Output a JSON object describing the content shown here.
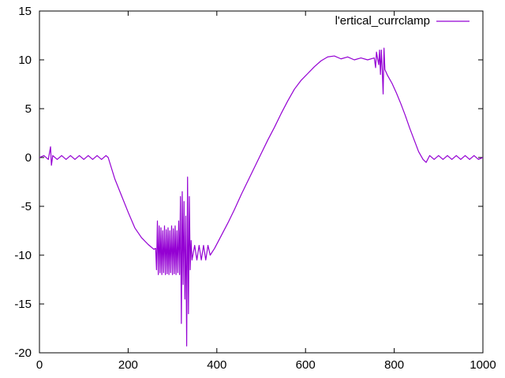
{
  "chart_data": {
    "type": "line",
    "title": "",
    "xlabel": "",
    "ylabel": "",
    "xlim": [
      0,
      1000
    ],
    "ylim": [
      -20,
      15
    ],
    "x_ticks": [
      0,
      200,
      400,
      600,
      800,
      1000
    ],
    "y_ticks": [
      -20,
      -15,
      -10,
      -5,
      0,
      5,
      10,
      15
    ],
    "grid": false,
    "legend_position": "top-right",
    "series": [
      {
        "name": "l'ertical_currclamp",
        "color": "#9400d3",
        "points": [
          [
            0,
            0.0
          ],
          [
            10,
            0.2
          ],
          [
            20,
            -0.2
          ],
          [
            25,
            1.1
          ],
          [
            27,
            -0.8
          ],
          [
            30,
            0.2
          ],
          [
            40,
            -0.2
          ],
          [
            50,
            0.2
          ],
          [
            60,
            -0.2
          ],
          [
            70,
            0.2
          ],
          [
            80,
            -0.2
          ],
          [
            90,
            0.2
          ],
          [
            100,
            -0.2
          ],
          [
            110,
            0.2
          ],
          [
            120,
            -0.2
          ],
          [
            130,
            0.2
          ],
          [
            140,
            -0.2
          ],
          [
            150,
            0.2
          ],
          [
            155,
            0.0
          ],
          [
            170,
            -2.2
          ],
          [
            185,
            -3.9
          ],
          [
            200,
            -5.6
          ],
          [
            215,
            -7.2
          ],
          [
            230,
            -8.2
          ],
          [
            245,
            -8.9
          ],
          [
            258,
            -9.4
          ],
          [
            262,
            -9.3
          ],
          [
            264,
            -11.5
          ],
          [
            266,
            -6.5
          ],
          [
            268,
            -12.0
          ],
          [
            270,
            -7.0
          ],
          [
            272,
            -11.8
          ],
          [
            274,
            -7.2
          ],
          [
            276,
            -12.0
          ],
          [
            278,
            -7.5
          ],
          [
            280,
            -11.8
          ],
          [
            282,
            -7.0
          ],
          [
            284,
            -12.0
          ],
          [
            286,
            -7.4
          ],
          [
            288,
            -11.9
          ],
          [
            290,
            -7.2
          ],
          [
            292,
            -12.0
          ],
          [
            294,
            -7.5
          ],
          [
            296,
            -11.8
          ],
          [
            298,
            -7.0
          ],
          [
            300,
            -12.0
          ],
          [
            302,
            -7.3
          ],
          [
            304,
            -11.9
          ],
          [
            306,
            -7.0
          ],
          [
            308,
            -12.0
          ],
          [
            310,
            -7.5
          ],
          [
            312,
            -11.8
          ],
          [
            314,
            -6.5
          ],
          [
            316,
            -12.0
          ],
          [
            318,
            -4.0
          ],
          [
            320,
            -17.0
          ],
          [
            322,
            -3.5
          ],
          [
            324,
            -13.0
          ],
          [
            326,
            -4.5
          ],
          [
            328,
            -14.5
          ],
          [
            330,
            -6.0
          ],
          [
            332,
            -19.3
          ],
          [
            334,
            -2.0
          ],
          [
            336,
            -16.0
          ],
          [
            338,
            -4.0
          ],
          [
            340,
            -11.5
          ],
          [
            342,
            -8.5
          ],
          [
            344,
            -10.5
          ],
          [
            350,
            -9.0
          ],
          [
            355,
            -10.5
          ],
          [
            360,
            -9.0
          ],
          [
            365,
            -10.5
          ],
          [
            370,
            -9.0
          ],
          [
            375,
            -10.5
          ],
          [
            380,
            -9.0
          ],
          [
            385,
            -10.0
          ],
          [
            395,
            -9.3
          ],
          [
            410,
            -8.0
          ],
          [
            425,
            -6.7
          ],
          [
            440,
            -5.3
          ],
          [
            455,
            -3.8
          ],
          [
            470,
            -2.4
          ],
          [
            485,
            -1.0
          ],
          [
            500,
            0.4
          ],
          [
            515,
            1.8
          ],
          [
            530,
            3.1
          ],
          [
            545,
            4.5
          ],
          [
            560,
            5.8
          ],
          [
            575,
            7.0
          ],
          [
            590,
            7.9
          ],
          [
            605,
            8.6
          ],
          [
            620,
            9.3
          ],
          [
            635,
            9.9
          ],
          [
            650,
            10.3
          ],
          [
            665,
            10.4
          ],
          [
            680,
            10.1
          ],
          [
            695,
            10.3
          ],
          [
            710,
            10.0
          ],
          [
            725,
            10.2
          ],
          [
            740,
            10.0
          ],
          [
            755,
            10.2
          ],
          [
            758,
            9.2
          ],
          [
            760,
            10.8
          ],
          [
            763,
            10.0
          ],
          [
            765,
            9.5
          ],
          [
            767,
            11.0
          ],
          [
            769,
            8.5
          ],
          [
            771,
            11.0
          ],
          [
            773,
            9.0
          ],
          [
            775,
            6.5
          ],
          [
            777,
            11.2
          ],
          [
            779,
            9.0
          ],
          [
            785,
            8.4
          ],
          [
            795,
            7.6
          ],
          [
            805,
            6.6
          ],
          [
            815,
            5.5
          ],
          [
            825,
            4.3
          ],
          [
            835,
            3.0
          ],
          [
            845,
            1.8
          ],
          [
            855,
            0.6
          ],
          [
            865,
            -0.2
          ],
          [
            872,
            -0.5
          ],
          [
            880,
            0.2
          ],
          [
            890,
            -0.2
          ],
          [
            900,
            0.2
          ],
          [
            910,
            -0.2
          ],
          [
            920,
            0.2
          ],
          [
            930,
            -0.2
          ],
          [
            940,
            0.2
          ],
          [
            950,
            -0.2
          ],
          [
            960,
            0.2
          ],
          [
            970,
            -0.2
          ],
          [
            980,
            0.2
          ],
          [
            990,
            -0.2
          ],
          [
            1000,
            0.0
          ]
        ]
      }
    ]
  }
}
